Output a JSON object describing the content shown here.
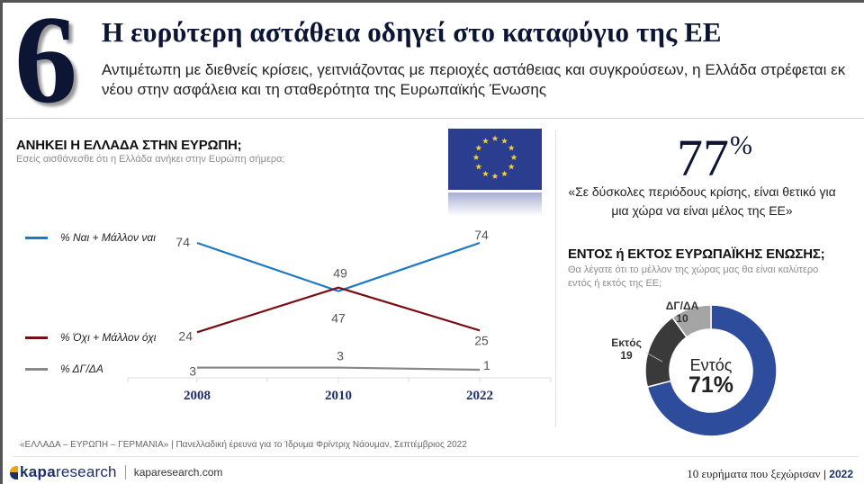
{
  "slide_number": "6",
  "title": "Η ευρύτερη αστάθεια οδηγεί στο καταφύγιο της ΕΕ",
  "subtitle": "Αντιμέτωπη με διεθνείς κρίσεις, γειτνιάζοντας με περιοχές αστάθειας και συγκρούσεων, η Ελλάδα στρέφεται εκ νέου στην ασφάλεια και τη σταθερότητα της Ευρωπαϊκής Ένωσης",
  "left_section": {
    "title": "ΑΝΗΚΕΙ Η ΕΛΛΑΔΑ ΣΤΗΝ ΕΥΡΩΠΗ;",
    "question": "Εσείς αισθάνεσθε ότι η Ελλάδα ανήκει στην Ευρώπη σήμερα;",
    "image": "eu-flag"
  },
  "right_stat": {
    "value": "77",
    "unit": "%",
    "quote": "«Σε δύσκολες περιόδους κρίσης, είναι θετικό για μια χώρα να είναι μέλος της ΕΕ»"
  },
  "right_section": {
    "title": "ΕΝΤΟΣ ή ΕΚΤΟΣ ΕΥΡΩΠΑΪΚΗΣ ΕΝΩΣΗΣ;",
    "question": "Θα λέγατε ότι το μέλλον της χώρας μας θα είναι καλύτερο εντός ή εκτός της ΕΕ;"
  },
  "colors": {
    "navy": "#0c1534",
    "yes": "#1f78c1",
    "no": "#7a0c14",
    "dk": "#888888",
    "donut_in": "#2d4c9b",
    "donut_out": "#3a3a3a",
    "donut_dk": "#a5a5a5"
  },
  "chart_data": [
    {
      "type": "line",
      "title": "ΑΝΗΚΕΙ Η ΕΛΛΑΔΑ ΣΤΗΝ ΕΥΡΩΠΗ;",
      "x": [
        "2008",
        "2010",
        "2022"
      ],
      "series": [
        {
          "name": "% Ναι + Μάλλον ναι",
          "values": [
            74,
            47,
            74
          ],
          "color": "#1f78c1"
        },
        {
          "name": "% Όχι + Μάλλον όχι",
          "values": [
            24,
            49,
            25
          ],
          "color": "#7a0c14"
        },
        {
          "name": "% ΔΓ/ΔΑ",
          "values": [
            3,
            3,
            1
          ],
          "color": "#888888"
        }
      ],
      "ylim": [
        0,
        80
      ],
      "xlabel": "",
      "ylabel": "",
      "grid": false,
      "legend": "left"
    },
    {
      "type": "pie",
      "variant": "donut",
      "title": "ΕΝΤΟΣ ή ΕΚΤΟΣ ΕΥΡΩΠΑΪΚΗΣ ΕΝΩΣΗΣ;",
      "labels": [
        "Εντός",
        "Εκτός",
        "ΔΓ/ΔΑ"
      ],
      "values": [
        71,
        19,
        10
      ],
      "colors": [
        "#2d4c9b",
        "#3a3a3a",
        "#a5a5a5"
      ],
      "center_label": "Εντός",
      "center_value": "71%"
    }
  ],
  "footer": {
    "source": "«ΕΛΛΑΔΑ – ΕΥΡΩΠΗ – ΓΕΡΜΑΝΙΑ» | Πανελλαδική έρευνα για το Ίδρυμα Φρίντριχ Νάουμαν, Σεπτέμβριος 2022",
    "logo_bold": "kapa",
    "logo_light": "research",
    "url": "kaparesearch.com",
    "tagline": "10 ευρήματα που ξεχώρισαν",
    "separator": "|",
    "year": "2022"
  }
}
